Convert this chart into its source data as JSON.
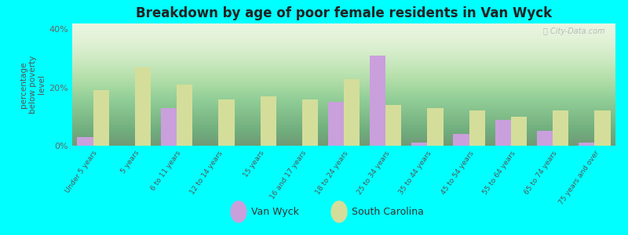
{
  "title": "Breakdown by age of poor female residents in Van Wyck",
  "ylabel": "percentage\nbelow poverty\nlevel",
  "categories": [
    "Under 5 years",
    "5 years",
    "6 to 11 years",
    "12 to 14 years",
    "15 years",
    "16 and 17 years",
    "18 to 24 years",
    "25 to 34 years",
    "35 to 44 years",
    "45 to 54 years",
    "55 to 64 years",
    "65 to 74 years",
    "75 years and over"
  ],
  "van_wyck": [
    3,
    0,
    13,
    0,
    0,
    0,
    15,
    31,
    1,
    4,
    9,
    5,
    1
  ],
  "south_carolina": [
    19,
    27,
    21,
    16,
    17,
    16,
    23,
    14,
    13,
    12,
    10,
    12,
    12
  ],
  "van_wyck_color": "#c9a0dc",
  "sc_color": "#d4de9a",
  "background_top": "#f0f8e8",
  "background_bottom": "#e0f0d0",
  "outer_bg": "#00ffff",
  "ylim": [
    0,
    42
  ],
  "yticks": [
    0,
    20,
    40
  ],
  "ytick_labels": [
    "0%",
    "20%",
    "40%"
  ],
  "bar_width": 0.38,
  "title_fontsize": 12,
  "legend_van_wyck": "Van Wyck",
  "legend_sc": "South Carolina"
}
